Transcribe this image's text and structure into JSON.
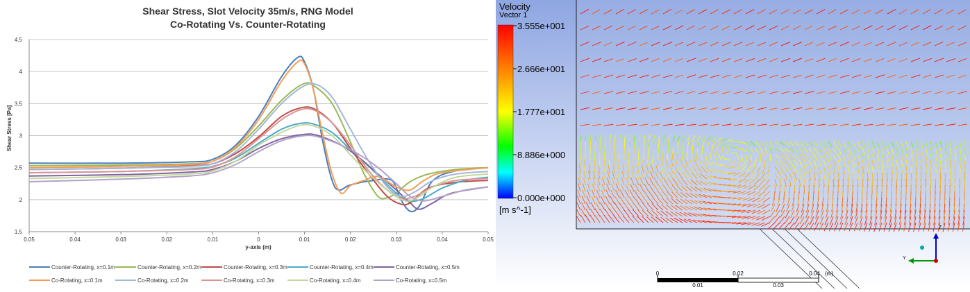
{
  "chart_data": [
    {
      "type": "line",
      "title": "Shear Stress, Slot Velocity 35m/s, RNG Model",
      "subtitle": "Co-Rotating Vs. Counter-Rotating",
      "xlabel": "y-axis (m)",
      "ylabel": "Shear Stress [Pa]",
      "xlim": [
        -0.05,
        0.05
      ],
      "ylim": [
        1.5,
        4.5
      ],
      "x_ticks": [
        -0.05,
        -0.04,
        -0.03,
        -0.02,
        -0.01,
        0,
        0.01,
        0.02,
        0.03,
        0.04,
        0.05
      ],
      "x_tick_labels": [
        "0.05",
        "0.04",
        "0.03",
        "0.02",
        "0.01",
        "0",
        "0.01",
        "0.02",
        "0.03",
        "0.04",
        "0.05"
      ],
      "y_ticks": [
        1.5,
        2,
        2.5,
        3,
        3.5,
        4,
        4.5
      ],
      "y_tick_labels": [
        "1.5",
        "2",
        "2.5",
        "3",
        "3.5",
        "4",
        "4.5"
      ],
      "grid": "horizontal",
      "legend_position": "bottom",
      "series": [
        {
          "name": "Counter-Rotating, x=0.1m",
          "color": "#4a7ebb",
          "points": [
            [
              -0.05,
              2.57
            ],
            [
              -0.03,
              2.57
            ],
            [
              -0.015,
              2.59
            ],
            [
              -0.01,
              2.63
            ],
            [
              -0.005,
              2.85
            ],
            [
              0,
              3.3
            ],
            [
              0.005,
              3.92
            ],
            [
              0.0085,
              4.22
            ],
            [
              0.01,
              4.15
            ],
            [
              0.012,
              3.7
            ],
            [
              0.014,
              2.9
            ],
            [
              0.016,
              2.3
            ],
            [
              0.0175,
              2.15
            ],
            [
              0.02,
              2.23
            ],
            [
              0.025,
              2.3
            ],
            [
              0.029,
              2.3
            ],
            [
              0.031,
              2.0
            ],
            [
              0.033,
              1.82
            ],
            [
              0.035,
              1.9
            ],
            [
              0.038,
              2.3
            ],
            [
              0.043,
              2.45
            ],
            [
              0.05,
              2.5
            ]
          ]
        },
        {
          "name": "Counter-Rotating, x=0.2m",
          "color": "#98b954",
          "points": [
            [
              -0.05,
              2.53
            ],
            [
              -0.03,
              2.54
            ],
            [
              -0.015,
              2.56
            ],
            [
              -0.01,
              2.6
            ],
            [
              -0.005,
              2.8
            ],
            [
              0,
              3.15
            ],
            [
              0.005,
              3.55
            ],
            [
              0.0095,
              3.8
            ],
            [
              0.012,
              3.78
            ],
            [
              0.016,
              3.5
            ],
            [
              0.02,
              2.9
            ],
            [
              0.023,
              2.4
            ],
            [
              0.026,
              2.05
            ],
            [
              0.028,
              2.03
            ],
            [
              0.03,
              2.1
            ],
            [
              0.033,
              2.28
            ],
            [
              0.037,
              2.4
            ],
            [
              0.043,
              2.47
            ],
            [
              0.05,
              2.5
            ]
          ]
        },
        {
          "name": "Counter-Rotating, x=0.3m",
          "color": "#be4b48",
          "points": [
            [
              -0.05,
              2.47
            ],
            [
              -0.03,
              2.49
            ],
            [
              -0.015,
              2.53
            ],
            [
              -0.01,
              2.56
            ],
            [
              -0.005,
              2.72
            ],
            [
              0,
              2.98
            ],
            [
              0.005,
              3.3
            ],
            [
              0.009,
              3.43
            ],
            [
              0.012,
              3.42
            ],
            [
              0.016,
              3.2
            ],
            [
              0.02,
              2.8
            ],
            [
              0.024,
              2.4
            ],
            [
              0.028,
              2.05
            ],
            [
              0.031,
              1.93
            ],
            [
              0.033,
              1.95
            ],
            [
              0.037,
              2.18
            ],
            [
              0.043,
              2.27
            ],
            [
              0.05,
              2.3
            ]
          ]
        },
        {
          "name": "Counter-Rotating, x=0.4m",
          "color": "#4aacc5",
          "points": [
            [
              -0.05,
              2.42
            ],
            [
              -0.03,
              2.44
            ],
            [
              -0.015,
              2.48
            ],
            [
              -0.01,
              2.52
            ],
            [
              -0.005,
              2.65
            ],
            [
              0,
              2.88
            ],
            [
              0.005,
              3.1
            ],
            [
              0.009,
              3.19
            ],
            [
              0.012,
              3.18
            ],
            [
              0.016,
              3.05
            ],
            [
              0.02,
              2.78
            ],
            [
              0.025,
              2.45
            ],
            [
              0.03,
              2.1
            ],
            [
              0.033,
              1.98
            ],
            [
              0.036,
              2.02
            ],
            [
              0.04,
              2.18
            ],
            [
              0.045,
              2.3
            ],
            [
              0.05,
              2.35
            ]
          ]
        },
        {
          "name": "Counter-Rotating, x=0.5m",
          "color": "#7e63a0",
          "points": [
            [
              -0.05,
              2.37
            ],
            [
              -0.03,
              2.39
            ],
            [
              -0.015,
              2.43
            ],
            [
              -0.01,
              2.47
            ],
            [
              -0.005,
              2.6
            ],
            [
              0,
              2.8
            ],
            [
              0.005,
              2.95
            ],
            [
              0.01,
              3.02
            ],
            [
              0.013,
              3.0
            ],
            [
              0.018,
              2.85
            ],
            [
              0.022,
              2.65
            ],
            [
              0.026,
              2.4
            ],
            [
              0.03,
              2.15
            ],
            [
              0.033,
              1.95
            ],
            [
              0.035,
              1.85
            ],
            [
              0.038,
              1.95
            ],
            [
              0.042,
              2.1
            ],
            [
              0.05,
              2.2
            ]
          ]
        },
        {
          "name": "Co-Rotating, x=0.1m",
          "color": "#f59d56",
          "points": [
            [
              -0.05,
              2.5
            ],
            [
              -0.03,
              2.52
            ],
            [
              -0.015,
              2.55
            ],
            [
              -0.01,
              2.6
            ],
            [
              -0.005,
              2.82
            ],
            [
              0,
              3.25
            ],
            [
              0.005,
              3.85
            ],
            [
              0.0085,
              4.15
            ],
            [
              0.01,
              4.12
            ],
            [
              0.012,
              3.7
            ],
            [
              0.014,
              3.0
            ],
            [
              0.016,
              2.4
            ],
            [
              0.018,
              2.1
            ],
            [
              0.02,
              2.22
            ],
            [
              0.023,
              2.3
            ],
            [
              0.026,
              2.36
            ],
            [
              0.03,
              2.2
            ],
            [
              0.033,
              2.15
            ],
            [
              0.036,
              2.3
            ],
            [
              0.04,
              2.42
            ],
            [
              0.05,
              2.5
            ]
          ]
        },
        {
          "name": "Co-Rotating, x=0.2m",
          "color": "#a3b7d9",
          "points": [
            [
              -0.05,
              2.47
            ],
            [
              -0.03,
              2.49
            ],
            [
              -0.015,
              2.52
            ],
            [
              -0.01,
              2.56
            ],
            [
              -0.005,
              2.75
            ],
            [
              0,
              3.1
            ],
            [
              0.005,
              3.5
            ],
            [
              0.0095,
              3.76
            ],
            [
              0.0125,
              3.8
            ],
            [
              0.016,
              3.6
            ],
            [
              0.02,
              3.1
            ],
            [
              0.024,
              2.6
            ],
            [
              0.028,
              2.2
            ],
            [
              0.031,
              2.05
            ],
            [
              0.034,
              2.12
            ],
            [
              0.038,
              2.3
            ],
            [
              0.043,
              2.4
            ],
            [
              0.05,
              2.44
            ]
          ]
        },
        {
          "name": "Co-Rotating, x=0.3m",
          "color": "#d99694",
          "points": [
            [
              -0.05,
              2.42
            ],
            [
              -0.03,
              2.44
            ],
            [
              -0.015,
              2.47
            ],
            [
              -0.01,
              2.51
            ],
            [
              -0.005,
              2.67
            ],
            [
              0,
              2.95
            ],
            [
              0.005,
              3.25
            ],
            [
              0.009,
              3.4
            ],
            [
              0.012,
              3.4
            ],
            [
              0.016,
              3.2
            ],
            [
              0.02,
              2.85
            ],
            [
              0.024,
              2.45
            ],
            [
              0.028,
              2.15
            ],
            [
              0.031,
              2.02
            ],
            [
              0.034,
              2.05
            ],
            [
              0.038,
              2.2
            ],
            [
              0.043,
              2.3
            ],
            [
              0.05,
              2.33
            ]
          ]
        },
        {
          "name": "Co-Rotating, x=0.4m",
          "color": "#c4d79b",
          "points": [
            [
              -0.05,
              2.33
            ],
            [
              -0.03,
              2.36
            ],
            [
              -0.015,
              2.4
            ],
            [
              -0.01,
              2.45
            ],
            [
              -0.005,
              2.6
            ],
            [
              0,
              2.85
            ],
            [
              0.005,
              3.05
            ],
            [
              0.009,
              3.16
            ],
            [
              0.012,
              3.15
            ],
            [
              0.016,
              3.0
            ],
            [
              0.02,
              2.7
            ],
            [
              0.024,
              2.4
            ],
            [
              0.028,
              2.15
            ],
            [
              0.032,
              1.98
            ],
            [
              0.035,
              2.05
            ],
            [
              0.038,
              2.2
            ],
            [
              0.043,
              2.35
            ],
            [
              0.05,
              2.4
            ]
          ]
        },
        {
          "name": "Co-Rotating, x=0.5m",
          "color": "#b2a2c7",
          "points": [
            [
              -0.05,
              2.28
            ],
            [
              -0.03,
              2.32
            ],
            [
              -0.015,
              2.37
            ],
            [
              -0.01,
              2.42
            ],
            [
              -0.005,
              2.55
            ],
            [
              0,
              2.75
            ],
            [
              0.005,
              2.92
            ],
            [
              0.01,
              3.0
            ],
            [
              0.013,
              2.98
            ],
            [
              0.018,
              2.85
            ],
            [
              0.022,
              2.7
            ],
            [
              0.026,
              2.5
            ],
            [
              0.03,
              2.25
            ],
            [
              0.033,
              2.05
            ],
            [
              0.036,
              1.98
            ],
            [
              0.04,
              2.05
            ],
            [
              0.045,
              2.15
            ],
            [
              0.05,
              2.2
            ]
          ]
        }
      ]
    },
    {
      "type": "heatmap",
      "description_title": "Velocity",
      "variable": "Vector 1",
      "colorbar_ticks": [
        "3.555e+001",
        "2.666e+001",
        "1.777e+001",
        "8.886e+000",
        "0.000e+000"
      ],
      "unit": "[m s^-1]",
      "scale_ticks": [
        "0",
        "0.02",
        "0.04"
      ],
      "scale_minor_ticks": [
        "0.01",
        "0.03"
      ],
      "scale_unit": "(m)",
      "colormap": [
        "#ff0000",
        "#ff8000",
        "#ffff00",
        "#00ff00",
        "#00ffff",
        "#0000ff"
      ]
    }
  ]
}
